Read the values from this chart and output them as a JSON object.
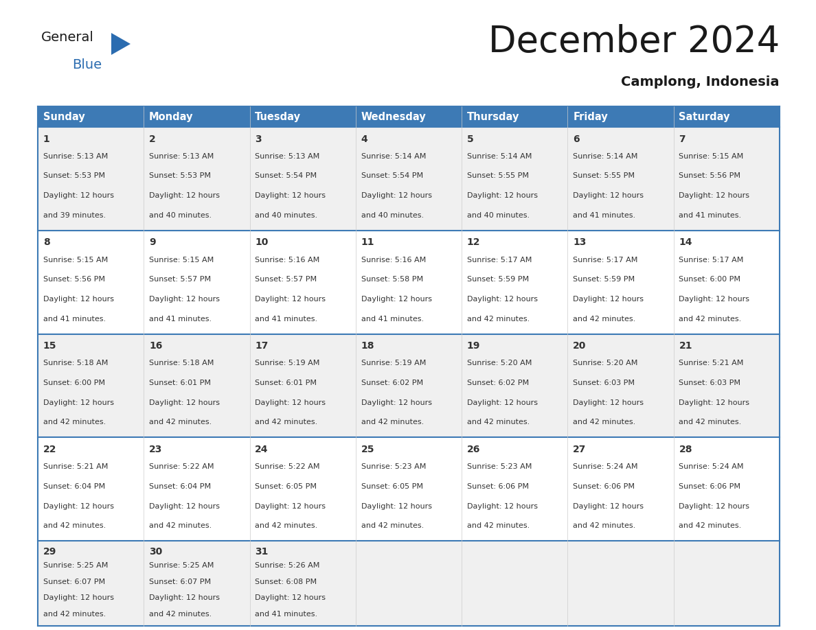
{
  "title": "December 2024",
  "subtitle": "Camplong, Indonesia",
  "header_color": "#3d7ab5",
  "header_text_color": "#ffffff",
  "days_of_week": [
    "Sunday",
    "Monday",
    "Tuesday",
    "Wednesday",
    "Thursday",
    "Friday",
    "Saturday"
  ],
  "cell_bg_colors": [
    "#f0f0f0",
    "#ffffff"
  ],
  "border_color": "#3d7ab5",
  "text_color": "#333333",
  "calendar_data": [
    [
      {
        "day": 1,
        "sunrise": "5:13 AM",
        "sunset": "5:53 PM",
        "daylight_min": "39 minutes."
      },
      {
        "day": 2,
        "sunrise": "5:13 AM",
        "sunset": "5:53 PM",
        "daylight_min": "40 minutes."
      },
      {
        "day": 3,
        "sunrise": "5:13 AM",
        "sunset": "5:54 PM",
        "daylight_min": "40 minutes."
      },
      {
        "day": 4,
        "sunrise": "5:14 AM",
        "sunset": "5:54 PM",
        "daylight_min": "40 minutes."
      },
      {
        "day": 5,
        "sunrise": "5:14 AM",
        "sunset": "5:55 PM",
        "daylight_min": "40 minutes."
      },
      {
        "day": 6,
        "sunrise": "5:14 AM",
        "sunset": "5:55 PM",
        "daylight_min": "41 minutes."
      },
      {
        "day": 7,
        "sunrise": "5:15 AM",
        "sunset": "5:56 PM",
        "daylight_min": "41 minutes."
      }
    ],
    [
      {
        "day": 8,
        "sunrise": "5:15 AM",
        "sunset": "5:56 PM",
        "daylight_min": "41 minutes."
      },
      {
        "day": 9,
        "sunrise": "5:15 AM",
        "sunset": "5:57 PM",
        "daylight_min": "41 minutes."
      },
      {
        "day": 10,
        "sunrise": "5:16 AM",
        "sunset": "5:57 PM",
        "daylight_min": "41 minutes."
      },
      {
        "day": 11,
        "sunrise": "5:16 AM",
        "sunset": "5:58 PM",
        "daylight_min": "41 minutes."
      },
      {
        "day": 12,
        "sunrise": "5:17 AM",
        "sunset": "5:59 PM",
        "daylight_min": "42 minutes."
      },
      {
        "day": 13,
        "sunrise": "5:17 AM",
        "sunset": "5:59 PM",
        "daylight_min": "42 minutes."
      },
      {
        "day": 14,
        "sunrise": "5:17 AM",
        "sunset": "6:00 PM",
        "daylight_min": "42 minutes."
      }
    ],
    [
      {
        "day": 15,
        "sunrise": "5:18 AM",
        "sunset": "6:00 PM",
        "daylight_min": "42 minutes."
      },
      {
        "day": 16,
        "sunrise": "5:18 AM",
        "sunset": "6:01 PM",
        "daylight_min": "42 minutes."
      },
      {
        "day": 17,
        "sunrise": "5:19 AM",
        "sunset": "6:01 PM",
        "daylight_min": "42 minutes."
      },
      {
        "day": 18,
        "sunrise": "5:19 AM",
        "sunset": "6:02 PM",
        "daylight_min": "42 minutes."
      },
      {
        "day": 19,
        "sunrise": "5:20 AM",
        "sunset": "6:02 PM",
        "daylight_min": "42 minutes."
      },
      {
        "day": 20,
        "sunrise": "5:20 AM",
        "sunset": "6:03 PM",
        "daylight_min": "42 minutes."
      },
      {
        "day": 21,
        "sunrise": "5:21 AM",
        "sunset": "6:03 PM",
        "daylight_min": "42 minutes."
      }
    ],
    [
      {
        "day": 22,
        "sunrise": "5:21 AM",
        "sunset": "6:04 PM",
        "daylight_min": "42 minutes."
      },
      {
        "day": 23,
        "sunrise": "5:22 AM",
        "sunset": "6:04 PM",
        "daylight_min": "42 minutes."
      },
      {
        "day": 24,
        "sunrise": "5:22 AM",
        "sunset": "6:05 PM",
        "daylight_min": "42 minutes."
      },
      {
        "day": 25,
        "sunrise": "5:23 AM",
        "sunset": "6:05 PM",
        "daylight_min": "42 minutes."
      },
      {
        "day": 26,
        "sunrise": "5:23 AM",
        "sunset": "6:06 PM",
        "daylight_min": "42 minutes."
      },
      {
        "day": 27,
        "sunrise": "5:24 AM",
        "sunset": "6:06 PM",
        "daylight_min": "42 minutes."
      },
      {
        "day": 28,
        "sunrise": "5:24 AM",
        "sunset": "6:06 PM",
        "daylight_min": "42 minutes."
      }
    ],
    [
      {
        "day": 29,
        "sunrise": "5:25 AM",
        "sunset": "6:07 PM",
        "daylight_min": "42 minutes."
      },
      {
        "day": 30,
        "sunrise": "5:25 AM",
        "sunset": "6:07 PM",
        "daylight_min": "42 minutes."
      },
      {
        "day": 31,
        "sunrise": "5:26 AM",
        "sunset": "6:08 PM",
        "daylight_min": "41 minutes."
      },
      null,
      null,
      null,
      null
    ]
  ],
  "logo_text1": "General",
  "logo_text2": "Blue",
  "logo_color1": "#1a1a1a",
  "logo_color2": "#2b6cb0",
  "logo_triangle_color": "#2b6cb0",
  "title_fontsize": 38,
  "subtitle_fontsize": 14,
  "header_fontsize": 10.5,
  "day_num_fontsize": 10,
  "cell_fontsize": 8.0
}
